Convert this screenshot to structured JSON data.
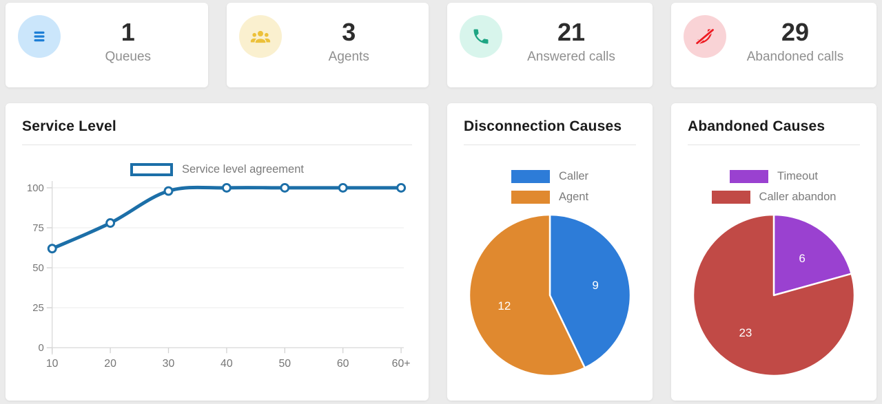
{
  "stats": [
    {
      "id": "queues",
      "value": "1",
      "label": "Queues",
      "icon": "list-icon",
      "icon_color": "#1e7fd6",
      "icon_bg": "#cbe6fb"
    },
    {
      "id": "agents",
      "value": "3",
      "label": "Agents",
      "icon": "users-icon",
      "icon_color": "#ecc13a",
      "icon_bg": "#faf0cf"
    },
    {
      "id": "answered-calls",
      "value": "21",
      "label": "Answered calls",
      "icon": "phone-icon",
      "icon_color": "#1ea583",
      "icon_bg": "#d8f5ec"
    },
    {
      "id": "abandoned-calls",
      "value": "29",
      "label": "Abandoned calls",
      "icon": "phone-slash-icon",
      "icon_color": "#ee1c23",
      "icon_bg": "#f9d3d6"
    }
  ],
  "panels": {
    "service_level": {
      "title": "Service Level"
    },
    "disconnection": {
      "title": "Disconnection Causes"
    },
    "abandoned": {
      "title": "Abandoned Causes"
    }
  },
  "chart_data": [
    {
      "id": "service-level",
      "type": "line",
      "title": "Service Level",
      "x": [
        "10",
        "20",
        "30",
        "40",
        "50",
        "60",
        "60+"
      ],
      "series": [
        {
          "name": "Service level agreement",
          "values": [
            62,
            78,
            98,
            100,
            100,
            100,
            100
          ],
          "color": "#1c6fa8"
        }
      ],
      "xlabel": "",
      "ylabel": "",
      "ylim": [
        0,
        100
      ],
      "yticks": [
        0,
        25,
        50,
        75,
        100
      ],
      "legend_position": "top",
      "grid": true,
      "marker": "open-circle"
    },
    {
      "id": "disconnection-causes",
      "type": "pie",
      "title": "Disconnection Causes",
      "labels": [
        "Caller",
        "Agent"
      ],
      "values": [
        9,
        12
      ],
      "colors": [
        "#2d7cd8",
        "#e0892f"
      ],
      "legend_position": "top",
      "value_label_color": "#ffffff"
    },
    {
      "id": "abandoned-causes",
      "type": "pie",
      "title": "Abandoned Causes",
      "labels": [
        "Timeout",
        "Caller abandon"
      ],
      "values": [
        6,
        23
      ],
      "colors": [
        "#9a41d0",
        "#c14a46"
      ],
      "legend_position": "top",
      "value_label_color": "#ffffff"
    }
  ]
}
